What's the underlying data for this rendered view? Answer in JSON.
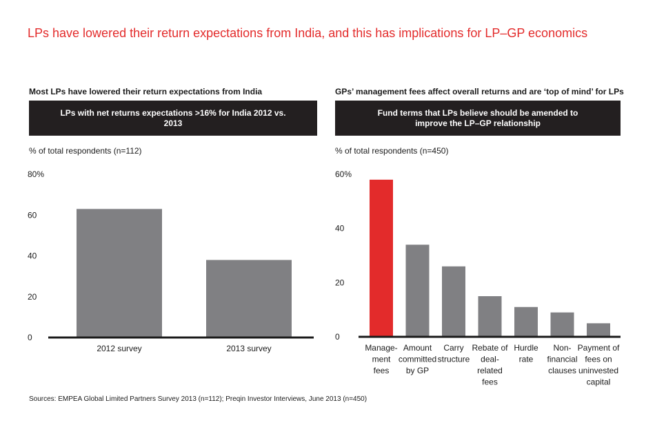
{
  "title": "LPs have lowered their return expectations from India, and this has implications for LP–GP economics",
  "chart_data": [
    {
      "type": "bar",
      "subtitle": "Most LPs have lowered their return expectations from India",
      "header": "LPs with net returns expectations >16% for India 2012 vs. 2013",
      "ylabel": "% of total respondents (n=112)",
      "categories": [
        "2012 survey",
        "2013 survey"
      ],
      "values": [
        63,
        38
      ],
      "ylim": [
        0,
        80
      ],
      "yticks": [
        "0",
        "20",
        "40",
        "60",
        "80%"
      ],
      "bar_color": "#808083"
    },
    {
      "type": "bar",
      "subtitle": "GPs’ management fees affect overall returns and are ‘top of mind’ for LPs",
      "header": "Fund terms that LPs believe should be amended to improve the LP–GP relationship",
      "ylabel": "% of total respondents (n=450)",
      "categories": [
        [
          "Manage-",
          "ment",
          "fees"
        ],
        [
          "Amount",
          "committed",
          "by GP"
        ],
        [
          "Carry",
          "structure"
        ],
        [
          "Rebate of",
          "deal-",
          "related",
          "fees"
        ],
        [
          "Hurdle",
          "rate"
        ],
        [
          "Non-",
          "financial",
          "clauses"
        ],
        [
          "Payment of",
          "fees on",
          "uninvested",
          "capital"
        ]
      ],
      "values": [
        58,
        34,
        26,
        15,
        11,
        9,
        5
      ],
      "ylim": [
        0,
        60
      ],
      "yticks": [
        "0",
        "20",
        "40",
        "60%"
      ],
      "bar_color": "#808083",
      "highlight_color": "#e32b2b",
      "highlight_index": 0
    }
  ],
  "source": "Sources: EMPEA Global Limited Partners Survey 2013 (n=112); Preqin Investor Interviews, June 2013 (n=450)"
}
